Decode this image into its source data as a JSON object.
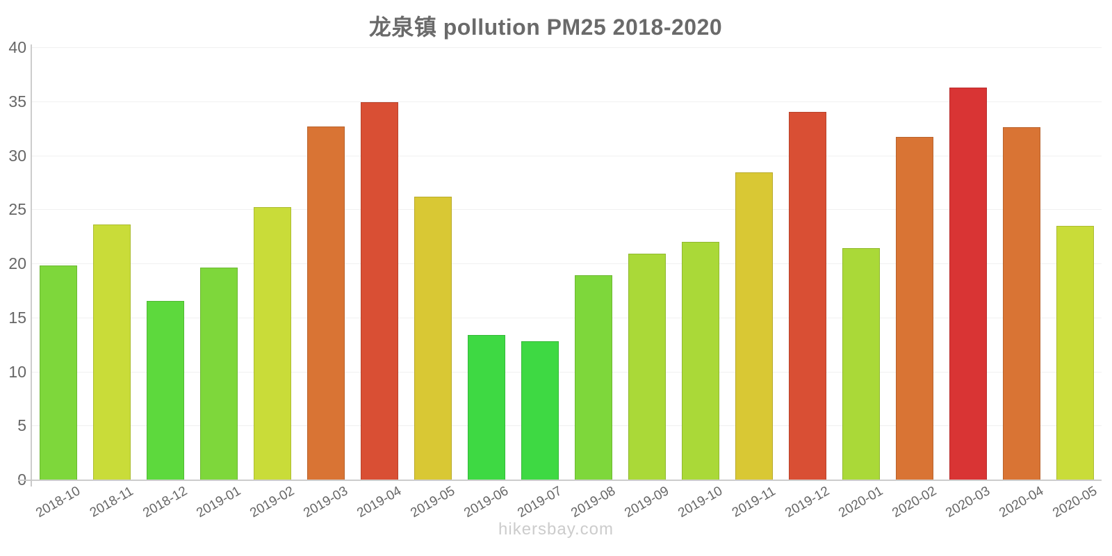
{
  "chart": {
    "title": "龙泉镇 pollution PM25 2018-2020",
    "watermark": "hikersbay.com"
  },
  "chart_data": {
    "type": "bar",
    "title": "龙泉镇 pollution PM25 2018-2020",
    "xlabel": "",
    "ylabel": "",
    "ylim": [
      0,
      40
    ],
    "yticks": [
      0,
      5,
      10,
      15,
      20,
      25,
      30,
      35,
      40
    ],
    "grid": "horizontal",
    "legend": "none",
    "categories": [
      "2018-10",
      "2018-11",
      "2018-12",
      "2019-01",
      "2019-02",
      "2019-03",
      "2019-04",
      "2019-05",
      "2019-06",
      "2019-07",
      "2019-08",
      "2019-09",
      "2019-10",
      "2019-11",
      "2019-12",
      "2020-01",
      "2020-02",
      "2020-03",
      "2020-04",
      "2020-05"
    ],
    "values": [
      19.8,
      23.6,
      16.5,
      19.6,
      25.2,
      32.7,
      34.9,
      26.2,
      13.4,
      12.8,
      18.9,
      20.9,
      22.0,
      28.4,
      34.0,
      21.4,
      31.7,
      36.3,
      32.6,
      23.5
    ],
    "bar_colors": [
      "#7ed73b",
      "#c9dc39",
      "#5dd93d",
      "#7ed73b",
      "#c9dc39",
      "#d97434",
      "#d94f34",
      "#d9c834",
      "#3ed943",
      "#3ed943",
      "#7ed73b",
      "#aad938",
      "#aad938",
      "#d9c834",
      "#d94f34",
      "#aad938",
      "#d97434",
      "#d93434",
      "#d97434",
      "#c9dc39"
    ],
    "colors_meaning": {
      "#3ed943": "lowest PM25",
      "#d93434": "highest PM25"
    },
    "axis_color": "#cccccc",
    "grid_color": "#f0f0f0",
    "label_color": "#666666",
    "title_color": "#6a6a6a",
    "watermark_color": "#cccccc"
  }
}
